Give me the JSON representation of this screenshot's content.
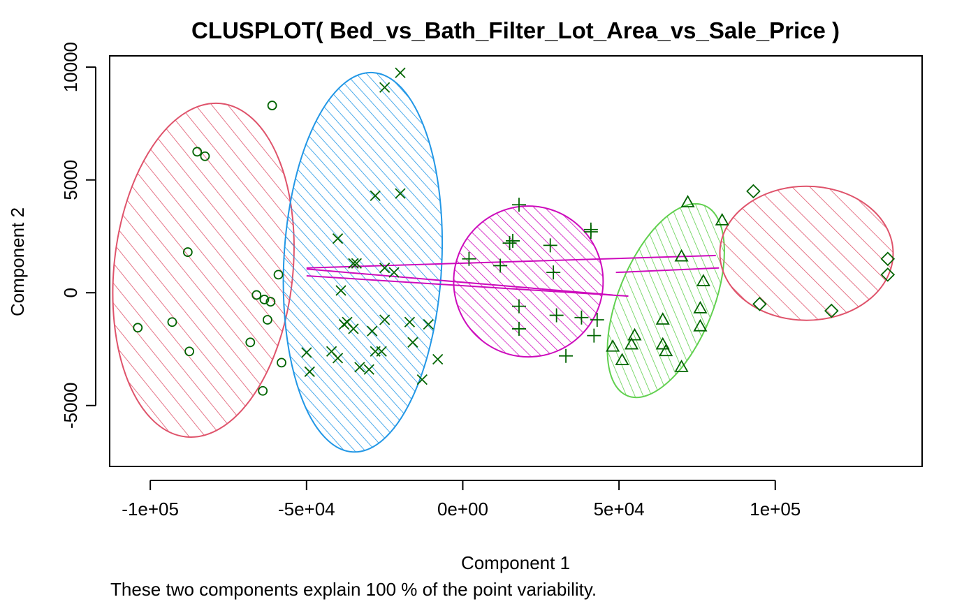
{
  "chart_data": {
    "type": "scatter",
    "title": "CLUSPLOT( Bed_vs_Bath_Filter_Lot_Area_vs_Sale_Price )",
    "xlabel": "Component 1",
    "ylabel": "Component 2",
    "subtitle": "These two components explain 100 % of the point variability.",
    "xlim": [
      -113000,
      147000
    ],
    "ylim": [
      -7700,
      10500
    ],
    "xticks": [
      -100000,
      -50000,
      0,
      50000,
      100000
    ],
    "xtick_labels": [
      "-1e+05",
      "-5e+04",
      "0e+00",
      "5e+04",
      "1e+05"
    ],
    "yticks": [
      -5000,
      0,
      5000,
      10000
    ],
    "ytick_labels": [
      "-5000",
      "0",
      "5000",
      "10000"
    ],
    "point_color": "#006400",
    "clusters": [
      {
        "id": 1,
        "marker": "circle",
        "color": "#DF536B",
        "hatch_angle": 45,
        "hatch_spacing": 18,
        "ellipse": {
          "cx": -83000,
          "cy": 1000,
          "a": 7350,
          "b": 49800,
          "angle": 6
        },
        "points": [
          [
            -104000,
            -1550
          ],
          [
            -93000,
            -1300
          ],
          [
            -85000,
            6250
          ],
          [
            -82500,
            6050
          ],
          [
            -88000,
            1800
          ],
          [
            -87500,
            -2600
          ],
          [
            -68000,
            -2200
          ],
          [
            -66000,
            -100
          ],
          [
            -63500,
            -300
          ],
          [
            -62500,
            -1200
          ],
          [
            -61500,
            -400
          ],
          [
            -61000,
            8300
          ],
          [
            -59000,
            800
          ],
          [
            -58000,
            -3100
          ],
          [
            -64000,
            -4350
          ]
        ]
      },
      {
        "id": 2,
        "marker": "x",
        "color": "#2297E6",
        "hatch_angle": 45,
        "hatch_spacing": 11,
        "ellipse": {
          "cx": -32000,
          "cy": 1350,
          "a": 8350,
          "b": 50000,
          "angle": 4
        },
        "points": [
          [
            -20000,
            9750
          ],
          [
            -25000,
            9100
          ],
          [
            -28000,
            4300
          ],
          [
            -20000,
            4400
          ],
          [
            -40000,
            2400
          ],
          [
            -34000,
            1300
          ],
          [
            -35000,
            1300
          ],
          [
            -25000,
            1100
          ],
          [
            -22000,
            900
          ],
          [
            -39000,
            100
          ],
          [
            -37000,
            -1300
          ],
          [
            -38000,
            -1400
          ],
          [
            -35000,
            -1600
          ],
          [
            -29000,
            -1700
          ],
          [
            -25000,
            -1200
          ],
          [
            -17000,
            -1300
          ],
          [
            -11000,
            -1400
          ],
          [
            -42000,
            -2600
          ],
          [
            -40000,
            -2900
          ],
          [
            -28000,
            -2600
          ],
          [
            -26000,
            -2600
          ],
          [
            -16000,
            -2200
          ],
          [
            -50000,
            -2650
          ],
          [
            -49000,
            -3500
          ],
          [
            -33000,
            -3300
          ],
          [
            -30000,
            -3400
          ],
          [
            -8000,
            -2950
          ],
          [
            -13000,
            -3850
          ]
        ]
      },
      {
        "id": 3,
        "marker": "plus",
        "color": "#CD0BBC",
        "hatch_angle": 45,
        "hatch_spacing": 11,
        "ellipse": {
          "cx": 21000,
          "cy": 500,
          "a": 3400,
          "b": 48000,
          "angle": 90
        },
        "points": [
          [
            18000,
            3900
          ],
          [
            41000,
            2800
          ],
          [
            41000,
            2700
          ],
          [
            16000,
            2300
          ],
          [
            15000,
            2200
          ],
          [
            28000,
            2100
          ],
          [
            2000,
            1500
          ],
          [
            12000,
            1200
          ],
          [
            29000,
            900
          ],
          [
            18000,
            -600
          ],
          [
            30000,
            -1000
          ],
          [
            38000,
            -1100
          ],
          [
            43000,
            -1200
          ],
          [
            18000,
            -1600
          ],
          [
            42000,
            -1900
          ],
          [
            33000,
            -2800
          ]
        ]
      },
      {
        "id": 4,
        "marker": "triangle",
        "color": "#61D04F",
        "hatch_angle": 45,
        "hatch_spacing": 11,
        "ellipse": {
          "cx": 65000,
          "cy": -350,
          "a": 9400,
          "b": 11500,
          "angle": 68
        },
        "points": [
          [
            72000,
            4000
          ],
          [
            83000,
            3200
          ],
          [
            70000,
            1600
          ],
          [
            77000,
            500
          ],
          [
            76000,
            -700
          ],
          [
            64000,
            -1200
          ],
          [
            76000,
            -1500
          ],
          [
            55000,
            -1900
          ],
          [
            54000,
            -2300
          ],
          [
            64000,
            -2300
          ],
          [
            65000,
            -2600
          ],
          [
            48000,
            -2400
          ],
          [
            51000,
            -3000
          ],
          [
            70000,
            -3300
          ]
        ]
      },
      {
        "id": 5,
        "marker": "diamond",
        "color": "#DF536B",
        "hatch_angle": 45,
        "hatch_spacing": 18,
        "ellipse": {
          "cx": 110000,
          "cy": 1750,
          "a": 2850,
          "b": 56000,
          "angle": 90
        },
        "points": [
          [
            93000,
            4500
          ],
          [
            136000,
            1500
          ],
          [
            136000,
            800
          ],
          [
            95000,
            -500
          ],
          [
            118000,
            -800
          ]
        ]
      }
    ],
    "connectors": [
      {
        "from": [
          -50000,
          1100
        ],
        "to": [
          81000,
          1650
        ]
      },
      {
        "from": [
          -50000,
          750
        ],
        "to": [
          53000,
          -150
        ]
      },
      {
        "from": [
          -50000,
          1050
        ],
        "to": [
          48000,
          -100
        ]
      },
      {
        "from": [
          49000,
          900
        ],
        "to": [
          82000,
          1100
        ]
      }
    ],
    "connector_color": "#CD0BBC"
  }
}
